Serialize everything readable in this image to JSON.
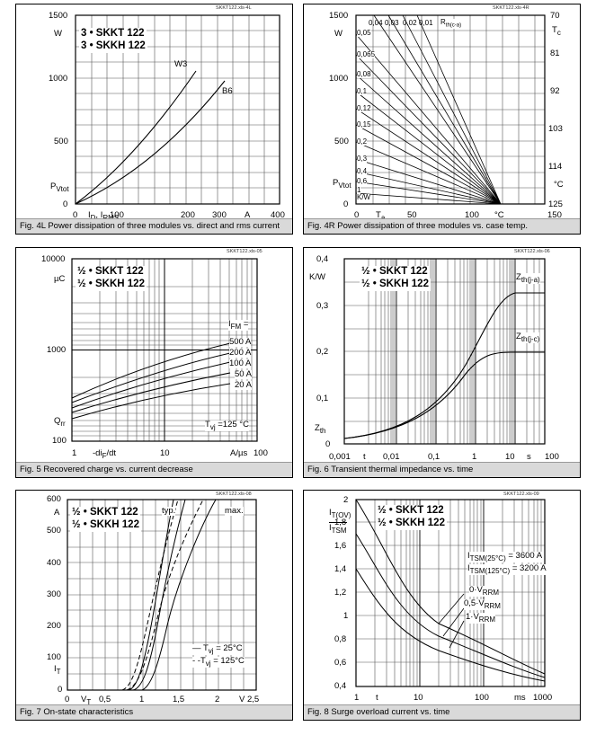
{
  "p1": {
    "file_id": "SKKT122.xls-4L",
    "legend": [
      "3 • SKKT 122",
      "3 • SKKH 122"
    ],
    "yticks": [
      "1500",
      "1000",
      "500",
      "0"
    ],
    "xticks": [
      "0",
      "100",
      "200",
      "300",
      "400"
    ],
    "w_label": "W",
    "y_symbol": "P",
    "y_sub": "Vtot",
    "x_symbol": "I",
    "x_sub": "D",
    "x_sep": ", I",
    "x_sub2": "RMS",
    "x_unit": "A",
    "w3": "W3",
    "b6": "B6",
    "caption": "Fig. 4L Power dissipation of three modules vs. direct and rms current"
  },
  "p2": {
    "file_id": "SKKT122.xls-4R",
    "yticks": [
      "1500",
      "1000",
      "500",
      "0"
    ],
    "w_label": "W",
    "y_symbol": "P",
    "y_sub": "Vtot",
    "xticks": [
      "0",
      "50",
      "100",
      "150"
    ],
    "x_symbol": "T",
    "x_sub": "a",
    "x_unit": "°C",
    "rticks": [
      "70",
      "81",
      "92",
      "103",
      "114",
      "125"
    ],
    "r_symbol": "T",
    "r_sub": "c",
    "r_unit": "°C",
    "rth_labels": [
      "0,04",
      "0,03",
      "0,02",
      "0,01"
    ],
    "rth_symbol": "R",
    "rth_sub": "th(c-a)",
    "left_labels": [
      "0,05",
      "0,065",
      "0,08",
      "0,1",
      "0,12",
      "0,15",
      "0,2",
      "0,3",
      "0,4",
      "0,6",
      "1"
    ],
    "kw": "K/W",
    "caption": "Fig. 4R Power dissipation of three modules vs. case temp."
  },
  "p3": {
    "file_id": "SKKT122.xls-05",
    "legend": [
      "½ • SKKT 122",
      "½ • SKKH 122"
    ],
    "yticks": [
      "10000",
      "1000",
      "100"
    ],
    "y_unit": "µC",
    "y_symbol": "Q",
    "y_sub": "rr",
    "xticks": [
      "1",
      "10",
      "100"
    ],
    "x_label": "-di",
    "x_sub": "F",
    "x_label2": "/dt",
    "x_unit": "A/µs",
    "ifm_symbol": "I",
    "ifm_sub": "FM",
    "ifm_eq": " =",
    "ifm_labels": [
      "500 A",
      "200 A",
      "100 A",
      "50 A",
      "20 A"
    ],
    "tvj_symbol": "T",
    "tvj_sub": "vj",
    "tvj_val": " =125 °C",
    "caption": "Fig. 5 Recovered charge vs. current decrease"
  },
  "p4": {
    "file_id": "SKKT122.xls-06",
    "legend": [
      "½ • SKKT 122",
      "½ • SKKH 122"
    ],
    "yticks": [
      "0,4",
      "0,3",
      "0,2",
      "0,1",
      "0"
    ],
    "y_unit": "K/W",
    "y_symbol": "Z",
    "y_sub": "th",
    "xticks": [
      "0,001",
      "0,01",
      "0,1",
      "1",
      "10",
      "100"
    ],
    "t_label": "t",
    "s_label": "s",
    "za_symbol": "Z",
    "za_sub": "th(j-a)",
    "zc_symbol": "Z",
    "zc_sub": "th(j-c)",
    "caption": "Fig. 6 Transient thermal impedance vs. time"
  },
  "p5": {
    "file_id": "SKKT122.xls-08",
    "legend": [
      "½ • SKKT 122",
      "½ • SKKH 122"
    ],
    "yticks": [
      "600",
      "500",
      "400",
      "300",
      "200",
      "100",
      "0"
    ],
    "y_unit": "A",
    "y_symbol": "I",
    "y_sub": "T",
    "xticks": [
      "0",
      "0,5",
      "1",
      "1,5",
      "2",
      "2,5"
    ],
    "x_unit": "V",
    "x_symbol": "V",
    "x_sub": "T",
    "typ": "typ.",
    "max": "max.",
    "key_solid": "—",
    "key_dash": "- -",
    "l1_sym": "T",
    "l1_sub": "vj",
    "l1_val": " =  25°C",
    "l2_sym": "T",
    "l2_sub": "vj",
    "l2_val": " = 125°C",
    "caption": "Fig. 7 On-state characteristics"
  },
  "p6": {
    "file_id": "SKKT122.xls-09",
    "legend": [
      "½ • SKKT 122",
      "½ • SKKH 122"
    ],
    "yticks": [
      "2",
      "1,8",
      "1,6",
      "1,4",
      "1,2",
      "1",
      "0,8",
      "0,6",
      "0,4"
    ],
    "y_num_sym": "I",
    "y_num_sub": "T(OV)",
    "y_den_sym": "I",
    "y_den_sub": "TSM",
    "xticks": [
      "1",
      "10",
      "100",
      "1000"
    ],
    "t_label": "t",
    "ms_label": "ms",
    "itsm1_sym": "I",
    "itsm1_sub": "TSM(25°C)",
    "itsm1_val": " = 3600 A",
    "itsm2_sym": "I",
    "itsm2_sub": "TSM(125°C)",
    "itsm2_val": " = 3200 A",
    "v_labels": [
      {
        "pre": "0·V",
        "sub": "RRM"
      },
      {
        "pre": "0,5·V",
        "sub": "RRM"
      },
      {
        "pre": "1·V",
        "sub": "RRM"
      }
    ],
    "caption": "Fig. 8 Surge overload current vs. time"
  }
}
